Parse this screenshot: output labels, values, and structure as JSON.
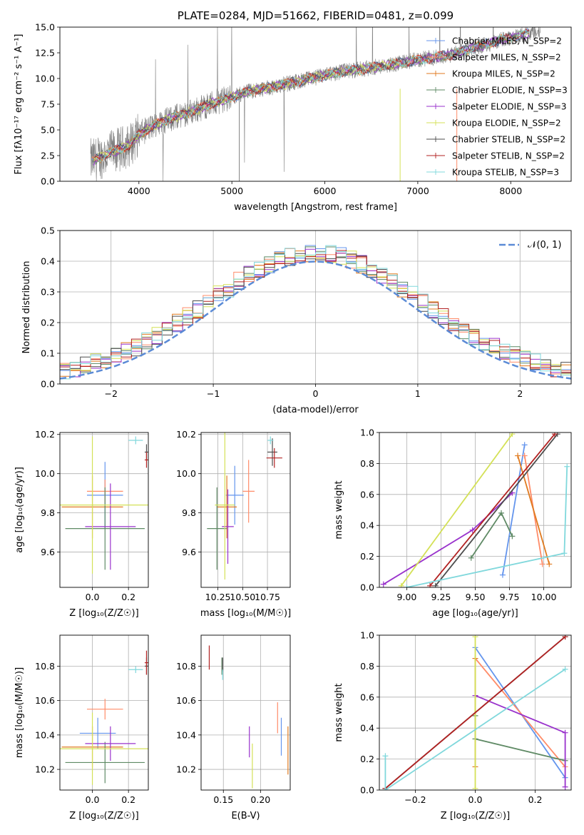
{
  "colors": {
    "chabrier_miles": "#6495ED",
    "salpeter_miles": "#FF8C69",
    "kroupa_miles": "#E07A1F",
    "chabrier_elodie": "#5F8A65",
    "salpeter_elodie": "#9932CC",
    "kroupa_elodie": "#D4E157",
    "chabrier_stelib": "#4D4D4D",
    "salpeter_stelib": "#B22222",
    "kroupa_stelib": "#80D8DC",
    "data_spectrum": "#808080",
    "normal_curve": "#5B8BD6"
  },
  "chart_data": [
    {
      "type": "line",
      "panel": "spectrum",
      "title": "PLATE=0284, MJD=51662, FIBERID=0481, z=0.099",
      "xlabel": "wavelength [Angstrom, rest frame]",
      "ylabel": "Flux [fλ10⁻¹⁷ erg cm⁻² s⁻¹ A⁻¹]",
      "xlim": [
        3150,
        8650
      ],
      "ylim": [
        0,
        15
      ],
      "xticks": [
        "4000",
        "5000",
        "6000",
        "7000",
        "8000"
      ],
      "yticks": [
        "0.0",
        "2.5",
        "5.0",
        "7.5",
        "10.0",
        "12.5",
        "15.0"
      ],
      "legend": "top-right",
      "series": [
        {
          "name": "Chabrier MILES, N_SSP=2"
        },
        {
          "name": "Salpeter MILES, N_SSP=2"
        },
        {
          "name": "Kroupa MILES, N_SSP=2"
        },
        {
          "name": "Chabrier ELODIE, N_SSP=3"
        },
        {
          "name": "Salpeter ELODIE, N_SSP=3"
        },
        {
          "name": "Kroupa ELODIE, N_SSP=2"
        },
        {
          "name": "Chabrier STELIB, N_SSP=2"
        },
        {
          "name": "Salpeter STELIB, N_SSP=2"
        },
        {
          "name": "Kroupa STELIB, N_SSP=3"
        }
      ],
      "continuum": {
        "x": [
          3500,
          3700,
          3900,
          4000,
          4200,
          4400,
          4600,
          4800,
          5000,
          5200,
          5400,
          5600,
          5800,
          6000,
          6200,
          6400,
          6600,
          6800,
          7000,
          7200,
          7400,
          7600,
          7800,
          8000,
          8200
        ],
        "y": [
          2.0,
          2.8,
          3.5,
          4.6,
          5.6,
          6.3,
          6.9,
          7.6,
          8.2,
          8.8,
          9.1,
          9.5,
          9.9,
          10.3,
          10.7,
          10.9,
          11.2,
          11.5,
          11.8,
          12.1,
          12.4,
          13.0,
          13.5,
          14.0,
          14.4
        ]
      }
    },
    {
      "type": "line",
      "panel": "residual_histogram",
      "xlabel": "(data-model)/error",
      "ylabel": "Normed distribution",
      "xlim": [
        -2.5,
        2.5
      ],
      "ylim": [
        0,
        0.5
      ],
      "grid": true,
      "xticks": [
        "−2",
        "−1",
        "0",
        "1",
        "2"
      ],
      "yticks": [
        "0.0",
        "0.1",
        "0.2",
        "0.3",
        "0.4",
        "0.5"
      ],
      "legend": "top-right",
      "reference": {
        "name": "𝒩(0, 1)",
        "mean": 0,
        "sigma": 1
      }
    },
    {
      "type": "scatter",
      "panel": "age_vs_Z",
      "xlabel": "Z [log₁₀(Z/Z☉)]",
      "ylabel": "age  [log₁₀(age/yr)]",
      "xlim": [
        -0.18,
        0.31
      ],
      "ylim": [
        9.42,
        10.21
      ],
      "grid": true,
      "xticks": [
        "0.0",
        "0.2"
      ],
      "yticks": [
        "9.6",
        "9.8",
        "10.0",
        "10.2"
      ],
      "points": [
        {
          "model": "chabrier_miles",
          "x": 0.07,
          "y": 9.89,
          "xerr": 0.1,
          "yerr": 0.17
        },
        {
          "model": "salpeter_miles",
          "x": 0.07,
          "y": 9.91,
          "xerr": 0.1,
          "yerr": 0.06
        },
        {
          "model": "kroupa_miles",
          "x": 0.0,
          "y": 9.83,
          "xerr": 0.17,
          "yerr": 0.16
        },
        {
          "model": "chabrier_elodie",
          "x": 0.07,
          "y": 9.72,
          "xerr": 0.22,
          "yerr": 0.21
        },
        {
          "model": "salpeter_elodie",
          "x": 0.1,
          "y": 9.73,
          "xerr": 0.14,
          "yerr": 0.22
        },
        {
          "model": "kroupa_elodie",
          "x": 0.0,
          "y": 9.84,
          "xerr": 0.31,
          "yerr": 0.35
        },
        {
          "model": "chabrier_stelib",
          "x": 0.3,
          "y": 10.11,
          "xerr": 0.01,
          "yerr": 0.04
        },
        {
          "model": "salpeter_stelib",
          "x": 0.3,
          "y": 10.07,
          "xerr": 0.01,
          "yerr": 0.04
        },
        {
          "model": "kroupa_stelib",
          "x": 0.24,
          "y": 10.17,
          "xerr": 0.04,
          "yerr": 0.02
        }
      ]
    },
    {
      "type": "scatter",
      "panel": "age_vs_mass",
      "xlabel": "mass [log₁₀(M/M☉)]",
      "xlim": [
        10.08,
        10.98
      ],
      "ylim": [
        9.42,
        10.21
      ],
      "grid": true,
      "xticks": [
        "10.25",
        "10.50",
        "10.75"
      ],
      "yticks": [
        "9.6",
        "9.8",
        "10.0",
        "10.2"
      ],
      "points": [
        {
          "model": "chabrier_miles",
          "x": 10.42,
          "y": 9.89,
          "xerr": 0.09,
          "yerr": 0.15
        },
        {
          "model": "salpeter_miles",
          "x": 10.56,
          "y": 9.91,
          "xerr": 0.06,
          "yerr": 0.16
        },
        {
          "model": "kroupa_miles",
          "x": 10.34,
          "y": 9.83,
          "xerr": 0.1,
          "yerr": 0.16
        },
        {
          "model": "chabrier_elodie",
          "x": 10.24,
          "y": 9.72,
          "xerr": 0.1,
          "yerr": 0.21
        },
        {
          "model": "salpeter_elodie",
          "x": 10.35,
          "y": 9.73,
          "xerr": 0.06,
          "yerr": 0.19
        },
        {
          "model": "kroupa_elodie",
          "x": 10.32,
          "y": 9.84,
          "xerr": 0.1,
          "yerr": 0.38
        },
        {
          "model": "chabrier_stelib",
          "x": 10.8,
          "y": 10.11,
          "xerr": 0.05,
          "yerr": 0.07
        },
        {
          "model": "salpeter_stelib",
          "x": 10.82,
          "y": 10.08,
          "xerr": 0.08,
          "yerr": 0.05
        },
        {
          "model": "kroupa_stelib",
          "x": 10.78,
          "y": 10.17,
          "xerr": 0.03,
          "yerr": 0.02
        }
      ]
    },
    {
      "type": "line",
      "panel": "mass_weight_vs_age",
      "xlabel": "age  [log₁₀(age/yr)]",
      "ylabel": "mass weight",
      "xlim": [
        8.8,
        10.2
      ],
      "ylim": [
        0,
        1
      ],
      "grid": true,
      "xticks": [
        "9.00",
        "9.25",
        "9.50",
        "9.75",
        "10.00"
      ],
      "yticks": [
        "0.0",
        "0.2",
        "0.4",
        "0.6",
        "0.8",
        "1.0"
      ],
      "series": [
        {
          "model": "chabrier_miles",
          "x": [
            9.7,
            9.86
          ],
          "y": [
            0.08,
            0.92
          ]
        },
        {
          "model": "salpeter_miles",
          "x": [
            9.86,
            9.99
          ],
          "y": [
            0.85,
            0.15
          ]
        },
        {
          "model": "kroupa_miles",
          "x": [
            9.81,
            10.04
          ],
          "y": [
            0.85,
            0.15
          ]
        },
        {
          "model": "chabrier_elodie",
          "x": [
            9.47,
            9.69,
            9.77
          ],
          "y": [
            0.19,
            0.48,
            0.33
          ]
        },
        {
          "model": "salpeter_elodie",
          "x": [
            8.83,
            9.48,
            9.77
          ],
          "y": [
            0.02,
            0.37,
            0.61
          ]
        },
        {
          "model": "kroupa_elodie",
          "x": [
            8.96,
            9.77
          ],
          "y": [
            0.01,
            0.99
          ]
        },
        {
          "model": "chabrier_stelib",
          "x": [
            9.21,
            10.1
          ],
          "y": [
            0.01,
            0.99
          ]
        },
        {
          "model": "salpeter_stelib",
          "x": [
            9.17,
            10.08
          ],
          "y": [
            0.01,
            0.99
          ]
        },
        {
          "model": "kroupa_stelib",
          "x": [
            9.0,
            10.15,
            10.17
          ],
          "y": [
            0.0,
            0.22,
            0.78
          ]
        }
      ]
    },
    {
      "type": "scatter",
      "panel": "mass_vs_Z",
      "xlabel": "Z [log₁₀(Z/Z☉)]",
      "ylabel": "mass [log₁₀(M/M☉)]",
      "xlim": [
        -0.18,
        0.31
      ],
      "ylim": [
        10.08,
        10.98
      ],
      "grid": true,
      "xticks": [
        "0.0",
        "0.2"
      ],
      "yticks": [
        "10.2",
        "10.4",
        "10.6",
        "10.8"
      ],
      "points": [
        {
          "model": "chabrier_miles",
          "x": 0.03,
          "y": 10.41,
          "xerr": 0.1,
          "yerr": 0.09
        },
        {
          "model": "salpeter_miles",
          "x": 0.07,
          "y": 10.55,
          "xerr": 0.1,
          "yerr": 0.06
        },
        {
          "model": "kroupa_miles",
          "x": 0.0,
          "y": 10.33,
          "xerr": 0.17,
          "yerr": 0.12
        },
        {
          "model": "chabrier_elodie",
          "x": 0.07,
          "y": 10.24,
          "xerr": 0.22,
          "yerr": 0.12
        },
        {
          "model": "salpeter_elodie",
          "x": 0.1,
          "y": 10.35,
          "xerr": 0.14,
          "yerr": 0.1
        },
        {
          "model": "kroupa_elodie",
          "x": 0.0,
          "y": 10.32,
          "xerr": 0.31,
          "yerr": 0.21
        },
        {
          "model": "chabrier_stelib",
          "x": 0.3,
          "y": 10.8,
          "xerr": 0.01,
          "yerr": 0.05
        },
        {
          "model": "salpeter_stelib",
          "x": 0.3,
          "y": 10.82,
          "xerr": 0.01,
          "yerr": 0.07
        },
        {
          "model": "kroupa_stelib",
          "x": 0.24,
          "y": 10.78,
          "xerr": 0.04,
          "yerr": 0.02
        }
      ]
    },
    {
      "type": "scatter",
      "panel": "mass_vs_EBV",
      "xlabel": "E(B-V)",
      "xlim": [
        0.12,
        0.24
      ],
      "ylim": [
        10.08,
        10.98
      ],
      "grid": true,
      "xticks": [
        "0.15",
        "0.20"
      ],
      "yticks": [
        "10.2",
        "10.4",
        "10.6",
        "10.8"
      ],
      "points": [
        {
          "model": "chabrier_miles",
          "x": 0.228,
          "y": 10.39,
          "xerr": 0,
          "yerr": 0.11
        },
        {
          "model": "salpeter_miles",
          "x": 0.223,
          "y": 10.5,
          "xerr": 0,
          "yerr": 0.09
        },
        {
          "model": "kroupa_miles",
          "x": 0.237,
          "y": 10.31,
          "xerr": 0,
          "yerr": 0.14
        },
        {
          "model": "chabrier_elodie",
          "x": 0.148,
          "y": 10.8,
          "xerr": 0,
          "yerr": 0.05
        },
        {
          "model": "salpeter_elodie",
          "x": 0.185,
          "y": 10.36,
          "xerr": 0,
          "yerr": 0.09
        },
        {
          "model": "kroupa_elodie",
          "x": 0.189,
          "y": 10.22,
          "xerr": 0,
          "yerr": 0.13
        },
        {
          "model": "chabrier_stelib",
          "x": 0.149,
          "y": 10.81,
          "xerr": 0,
          "yerr": 0.04
        },
        {
          "model": "salpeter_stelib",
          "x": 0.131,
          "y": 10.85,
          "xerr": 0,
          "yerr": 0.07
        },
        {
          "model": "kroupa_stelib",
          "x": 0.149,
          "y": 10.75,
          "xerr": 0,
          "yerr": 0.03
        }
      ]
    },
    {
      "type": "line",
      "panel": "mass_weight_vs_Z",
      "xlabel": "Z [log₁₀(Z/Z☉)]",
      "ylabel": "mass weight",
      "xlim": [
        -0.32,
        0.32
      ],
      "ylim": [
        0,
        1
      ],
      "grid": true,
      "xticks": [
        "−0.2",
        "0.0",
        "0.2"
      ],
      "yticks": [
        "0.0",
        "0.2",
        "0.4",
        "0.6",
        "0.8",
        "1.0"
      ],
      "series": [
        {
          "model": "chabrier_miles",
          "x": [
            0.0,
            0.3
          ],
          "y": [
            0.92,
            0.08
          ]
        },
        {
          "model": "salpeter_miles",
          "x": [
            0.0,
            0.3
          ],
          "y": [
            0.85,
            0.15
          ]
        },
        {
          "model": "kroupa_miles",
          "x": [
            0.0,
            0.0
          ],
          "y": [
            0.85,
            0.15
          ]
        },
        {
          "model": "chabrier_elodie",
          "x": [
            0.0,
            0.0,
            0.3
          ],
          "y": [
            0.48,
            0.33,
            0.19
          ]
        },
        {
          "model": "salpeter_elodie",
          "x": [
            0.0,
            0.3,
            0.3
          ],
          "y": [
            0.61,
            0.37,
            0.02
          ]
        },
        {
          "model": "kroupa_elodie",
          "x": [
            0.0,
            0.0
          ],
          "y": [
            0.99,
            0.01
          ]
        },
        {
          "model": "chabrier_stelib",
          "x": [
            -0.3,
            0.3
          ],
          "y": [
            0.01,
            0.99
          ]
        },
        {
          "model": "salpeter_stelib",
          "x": [
            -0.3,
            0.3
          ],
          "y": [
            0.01,
            0.99
          ]
        },
        {
          "model": "kroupa_stelib",
          "x": [
            -0.3,
            -0.3,
            0.3
          ],
          "y": [
            0.22,
            0.0,
            0.78
          ]
        }
      ]
    }
  ]
}
